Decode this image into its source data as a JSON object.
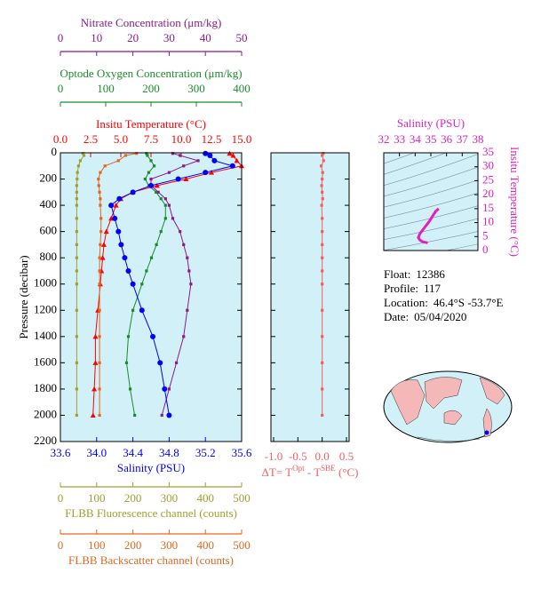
{
  "chart_data": [
    {
      "type": "profile",
      "ylabel": "Pressure (decibar)",
      "ylim": [
        0,
        2200
      ],
      "yticks": [
        0,
        200,
        400,
        600,
        800,
        1000,
        1200,
        1400,
        1600,
        1800,
        2000,
        2200
      ],
      "y": [
        5,
        20,
        60,
        100,
        150,
        200,
        250,
        300,
        350,
        400,
        500,
        600,
        700,
        800,
        900,
        1000,
        1200,
        1400,
        1600,
        1800,
        2000
      ],
      "background": "#d2f0f8",
      "axes": [
        {
          "label": "Insitu Temperature (°C)",
          "side": "top",
          "color": "#ff0000",
          "marker": "triangle",
          "lim": [
            0,
            15
          ],
          "ticks": [
            {
              "value": 0,
              "label": "0.0"
            },
            {
              "value": 2.5,
              "label": "2.5"
            },
            {
              "value": 5,
              "label": "5.0"
            },
            {
              "value": 7.5,
              "label": "7.5"
            },
            {
              "value": 10,
              "label": "10.0"
            },
            {
              "value": 12.5,
              "label": "12.5"
            },
            {
              "value": 15,
              "label": "15.0"
            }
          ],
          "values": [
            14.0,
            14.3,
            14.6,
            15.0,
            12.5,
            10.4,
            8.0,
            6.0,
            5.0,
            4.6,
            4.2,
            3.8,
            3.6,
            3.5,
            3.4,
            3.3,
            3.1,
            2.9,
            2.9,
            2.8,
            2.7
          ]
        },
        {
          "label": "Optode Oxygen Concentration (μm/kg)",
          "side": "top",
          "color": "#1a8c2a",
          "marker": "square",
          "lim": [
            0,
            400
          ],
          "ticks": [
            0,
            100,
            200,
            300,
            400
          ],
          "values": [
            190,
            192,
            200,
            207,
            195,
            187,
            195,
            211,
            222,
            232,
            232,
            222,
            212,
            201,
            190,
            180,
            160,
            150,
            146,
            154,
            164
          ]
        },
        {
          "label": "Nitrate Concentration (μm/kg)",
          "side": "top",
          "color": "#8c1a8c",
          "marker": "square",
          "lim": [
            0,
            50
          ],
          "ticks": [
            0,
            10,
            20,
            30,
            40,
            50
          ],
          "values": [
            31,
            33,
            38,
            34,
            30,
            25,
            25,
            27,
            29,
            30,
            31,
            33,
            34,
            35,
            35.5,
            36,
            35,
            34,
            32,
            30,
            28
          ]
        },
        {
          "label": "Salinity (PSU)",
          "side": "bottom",
          "color": "#0000ff",
          "marker": "circle",
          "lim": [
            33.6,
            35.6
          ],
          "ticks": [
            33.6,
            {
              "value": 34.0,
              "label": "34.0"
            },
            34.4,
            34.8,
            35.2,
            35.6
          ],
          "values": [
            35.2,
            35.25,
            35.3,
            35.5,
            35.2,
            34.9,
            34.6,
            34.4,
            34.25,
            34.16,
            34.2,
            34.24,
            34.27,
            34.31,
            34.35,
            34.4,
            34.5,
            34.62,
            34.7,
            34.75,
            34.8
          ]
        },
        {
          "label": "FLBB Fluorescence channel (counts)",
          "side": "bottom",
          "color": "#a0a030",
          "marker": "square",
          "lim": [
            0,
            500
          ],
          "ticks": [
            0,
            100,
            200,
            300,
            400,
            500
          ],
          "values": [
            62,
            65,
            55,
            50,
            47,
            46,
            45,
            45,
            45,
            45,
            45,
            45,
            45,
            45,
            45,
            45,
            45,
            45,
            45,
            45,
            45
          ]
        },
        {
          "label": "FLBB Backscatter channel (counts)",
          "side": "bottom",
          "color": "#e06820",
          "marker": "square",
          "lim": [
            0,
            500
          ],
          "ticks": [
            0,
            100,
            200,
            300,
            400,
            500
          ],
          "values": [
            210,
            180,
            160,
            123,
            110,
            105,
            106,
            108,
            110,
            110,
            112,
            112,
            110,
            108,
            108,
            108,
            108,
            108,
            108,
            108,
            108
          ]
        }
      ]
    },
    {
      "type": "difference",
      "xlabel": [
        "ΔT= T",
        "Opt",
        " - T",
        "SBE",
        " (°C)"
      ],
      "color": "#f06060",
      "xlim": [
        -1,
        0.5
      ],
      "xticks": [
        {
          "value": -1,
          "label": "-1.0"
        },
        -0.5,
        {
          "value": 0,
          "label": "0.0"
        },
        0.5
      ],
      "ylim": [
        0,
        2200
      ],
      "yticks": [
        0,
        200,
        400,
        600,
        800,
        1000,
        1200,
        1400,
        1600,
        1800,
        2000,
        2200
      ],
      "y": [
        5,
        20,
        60,
        100,
        150,
        200,
        250,
        300,
        350,
        400,
        500,
        600,
        700,
        800,
        900,
        1000,
        1200,
        1400,
        1600,
        1800,
        2000
      ],
      "values": [
        0.02,
        0.0,
        0.03,
        -0.02,
        0.01,
        0.0,
        -0.01,
        0.0,
        0.01,
        -0.01,
        0.0,
        0.0,
        0.0,
        0.0,
        0.0,
        0.0,
        0.0,
        0.0,
        0.0,
        0.0,
        0.0
      ]
    },
    {
      "type": "ts",
      "xlabel": "Salinity (PSU)",
      "ylabel": "Insitu Temperature (°C)",
      "color": "#e020c0",
      "xlim": [
        32,
        38
      ],
      "xticks": [
        32,
        33,
        34,
        35,
        36,
        37,
        38
      ],
      "ylim": [
        0,
        35
      ],
      "yticks": [
        0,
        5,
        10,
        15,
        20,
        25,
        30,
        35
      ],
      "x": [
        34.8,
        34.7,
        34.5,
        34.3,
        34.2,
        34.3,
        34.9,
        35.3,
        35.5
      ],
      "y": [
        2.7,
        2.9,
        3.1,
        3.8,
        4.6,
        6.0,
        10.4,
        14.0,
        15.0
      ]
    }
  ],
  "info": [
    {
      "label": "Float:",
      "value": "12386"
    },
    {
      "label": "Profile:",
      "value": "117"
    },
    {
      "label": "Location:",
      "value": "46.4°S  -53.7°E"
    },
    {
      "label": "Date:",
      "value": "05/04/2020"
    }
  ]
}
